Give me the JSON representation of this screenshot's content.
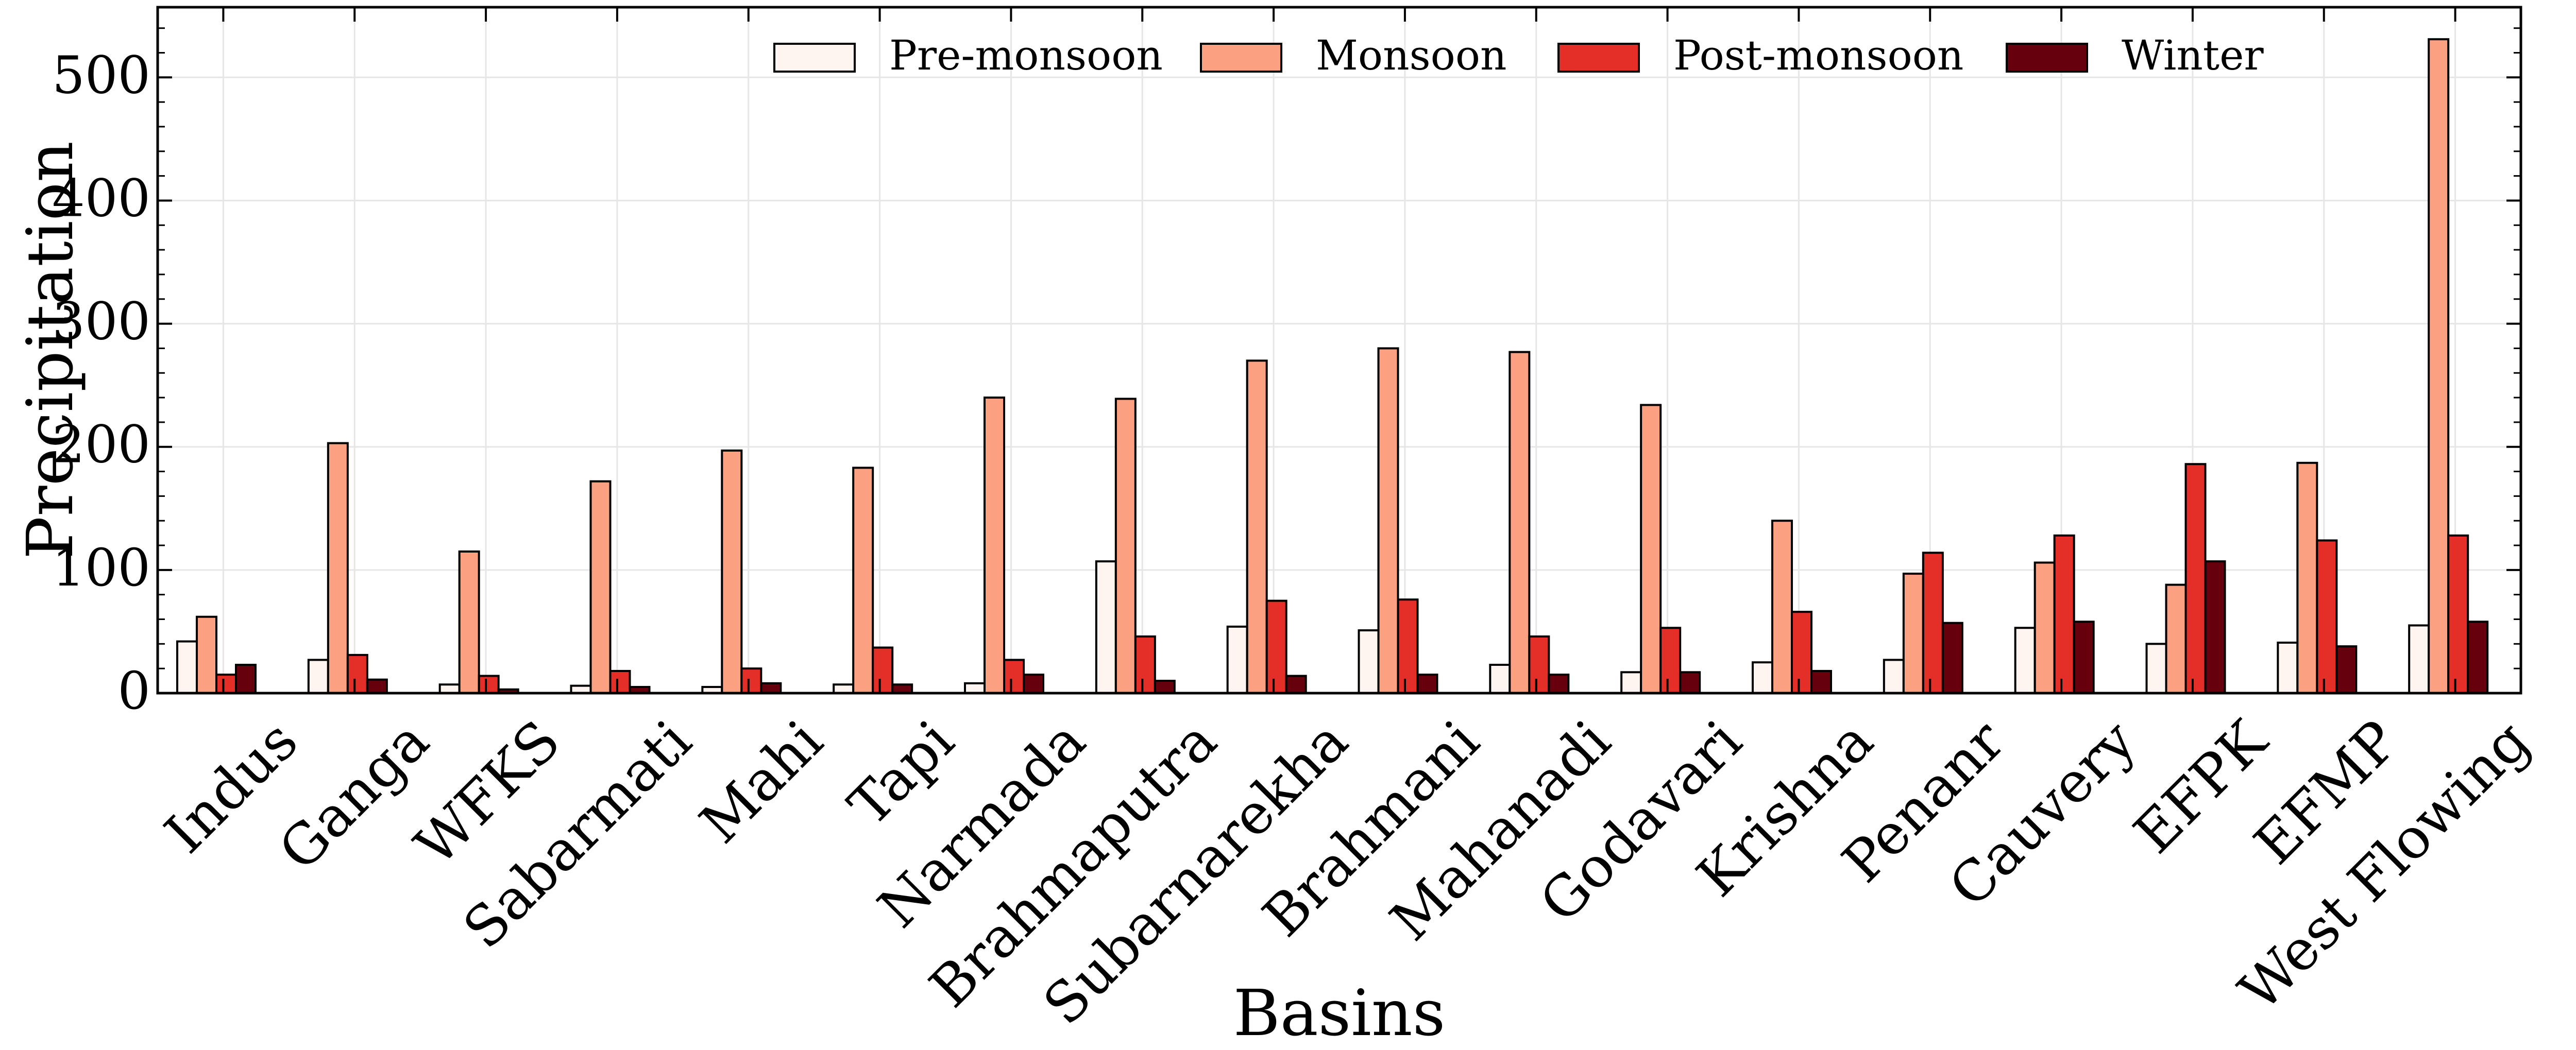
{
  "chart_data": {
    "type": "bar",
    "title": "",
    "xlabel": "Basins",
    "ylabel": "Precipitation",
    "ylim": [
      0,
      557
    ],
    "yticks": [
      0,
      100,
      200,
      300,
      400,
      500
    ],
    "grid": true,
    "legend_position": "top-center",
    "categories": [
      "Indus",
      "Ganga",
      "WFKS",
      "Sabarmati",
      "Mahi",
      "Tapi",
      "Narmada",
      "Brahmaputra",
      "Subarnarekha",
      "Brahmani",
      "Mahanadi",
      "Godavari",
      "Krishna",
      "Penanr",
      "Cauvery",
      "EFPK",
      "EFMP",
      "West Flowing"
    ],
    "series": [
      {
        "name": "Pre-monsoon",
        "color": "#fff5f0",
        "values": [
          42,
          27,
          7,
          6,
          5,
          7,
          8,
          107,
          54,
          51,
          23,
          17,
          25,
          27,
          53,
          40,
          41,
          55
        ]
      },
      {
        "name": "Monsoon",
        "color": "#fca082",
        "values": [
          62,
          203,
          115,
          172,
          197,
          183,
          240,
          239,
          270,
          280,
          277,
          234,
          140,
          97,
          106,
          88,
          187,
          531
        ]
      },
      {
        "name": "Post-monsoon",
        "color": "#e32f27",
        "values": [
          15,
          31,
          14,
          18,
          20,
          37,
          27,
          46,
          75,
          76,
          46,
          53,
          66,
          114,
          128,
          186,
          124,
          128
        ]
      },
      {
        "name": "Winter",
        "color": "#67000d",
        "values": [
          23,
          11,
          3,
          5,
          8,
          7,
          15,
          10,
          14,
          15,
          15,
          17,
          18,
          57,
          58,
          107,
          38,
          58
        ]
      }
    ]
  }
}
